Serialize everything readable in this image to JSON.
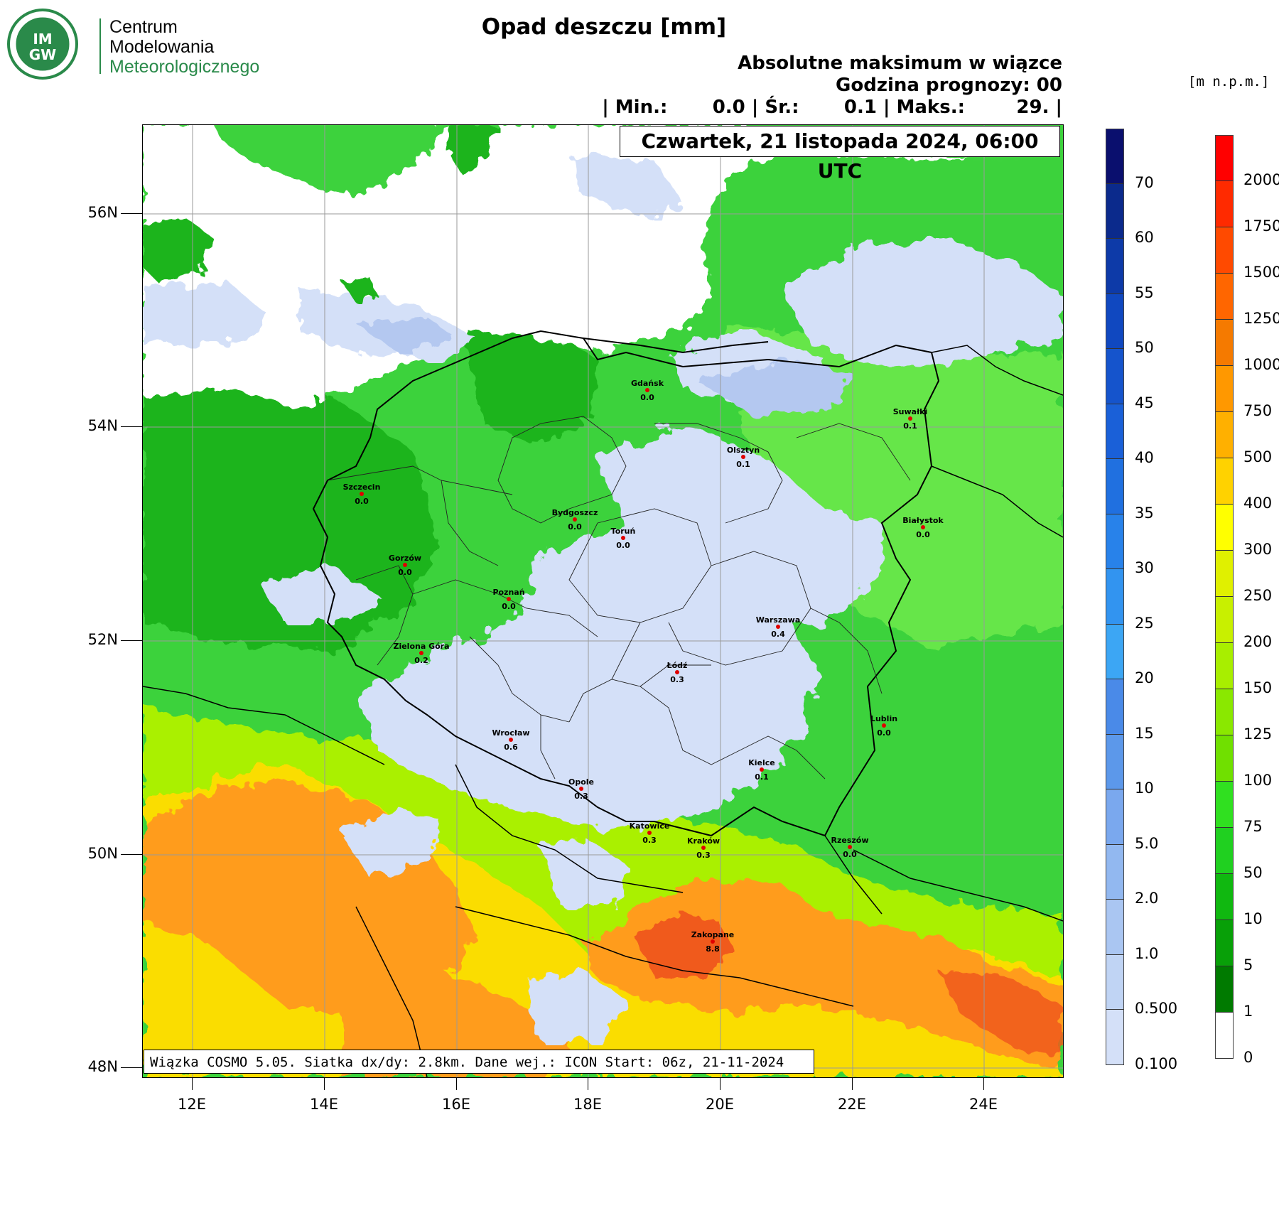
{
  "logo": {
    "badge_top": "IM",
    "badge_bottom": "GW",
    "line1": "Centrum",
    "line2": "Modelowania",
    "line3": "Meteorologicznego",
    "initial1": "C",
    "rest1": "entrum",
    "initial2": "M",
    "rest2": "odelowania",
    "initial3": "M",
    "rest3": "eteorologicznego"
  },
  "title": "Opad deszczu [mm]",
  "header": {
    "line1": "Absolutne maksimum w wiązce",
    "line2": "Godzina prognozy: 00",
    "line3": "| Min.:       0.0 | Śr.:       0.1 | Maks.:        29. |"
  },
  "date": "Czwartek, 21 listopada 2024, 06:00 UTC",
  "footer": "Wiązka COSMO 5.05. Siatka dx/dy: 2.8km. Dane wej.: ICON Start: 06z, 21-11-2024",
  "axes": {
    "lat_labels": [
      "56N",
      "54N",
      "52N",
      "50N",
      "48N"
    ],
    "lon_labels": [
      "12E",
      "14E",
      "16E",
      "18E",
      "20E",
      "22E",
      "24E"
    ]
  },
  "cities": [
    {
      "name": "Gdańsk",
      "value": "0.0"
    },
    {
      "name": "Suwałki",
      "value": "0.1"
    },
    {
      "name": "Olsztyn",
      "value": "0.1"
    },
    {
      "name": "Szczecin",
      "value": "0.0"
    },
    {
      "name": "Bydgoszcz",
      "value": "0.0"
    },
    {
      "name": "Toruń",
      "value": "0.0"
    },
    {
      "name": "Białystok",
      "value": "0.0"
    },
    {
      "name": "Gorzów",
      "value": "0.0"
    },
    {
      "name": "Poznań",
      "value": "0.0"
    },
    {
      "name": "Warszawa",
      "value": "0.4"
    },
    {
      "name": "Zielona Góra",
      "value": "0.2"
    },
    {
      "name": "Łódź",
      "value": "0.3"
    },
    {
      "name": "Lublin",
      "value": "0.0"
    },
    {
      "name": "Wrocław",
      "value": "0.6"
    },
    {
      "name": "Kielce",
      "value": "0.1"
    },
    {
      "name": "Opole",
      "value": "0.3"
    },
    {
      "name": "Katowice",
      "value": "0.3"
    },
    {
      "name": "Kraków",
      "value": "0.3"
    },
    {
      "name": "Rzeszów",
      "value": "0.0"
    },
    {
      "name": "Zakopane",
      "value": "8.8"
    }
  ],
  "rain_scale": {
    "labels": [
      "70",
      "60",
      "55",
      "50",
      "45",
      "40",
      "35",
      "30",
      "25",
      "20",
      "15",
      "10",
      "5.0",
      "2.0",
      "1.0",
      "0.500",
      "0.100"
    ],
    "colors": [
      "#0a0f6e",
      "#0b2a8c",
      "#0d3aa8",
      "#1048c0",
      "#1554cc",
      "#1a60d8",
      "#2070e0",
      "#2882ea",
      "#3294f0",
      "#3ca6f4",
      "#4a8ae8",
      "#5c98ea",
      "#7aa8ee",
      "#92b8f0",
      "#aac6f2",
      "#c0d4f4",
      "#d4e0f8"
    ]
  },
  "terrain_scale": {
    "unit": "[m n.p.m.]",
    "labels": [
      "2000",
      "1750",
      "1500",
      "1250",
      "1000",
      "750",
      "500",
      "400",
      "300",
      "250",
      "200",
      "150",
      "125",
      "100",
      "75",
      "50",
      "10",
      "5",
      "1",
      "0"
    ],
    "colors": [
      "#ff0000",
      "#ff2a00",
      "#ff4a00",
      "#ff6600",
      "#f57a00",
      "#ff9800",
      "#ffb000",
      "#ffd200",
      "#ffff00",
      "#e0f000",
      "#c8f000",
      "#a8ee00",
      "#8ae800",
      "#70e000",
      "#30e020",
      "#20d020",
      "#10b810",
      "#08a008",
      "#007a00",
      "#ffffff"
    ]
  },
  "colors": {
    "sea": "#ffffff",
    "rain_light": "#d4e0f8",
    "rain_mid": "#b4c8f0",
    "lowland_green": "#3cd23c",
    "green_dark": "#1eb41e",
    "green_light": "#66e64a",
    "upland": "#aaf000",
    "yellow": "#ffdc00",
    "orange": "#ff9c1e",
    "red": "#f05a1e",
    "city_dot": "#e00000"
  }
}
